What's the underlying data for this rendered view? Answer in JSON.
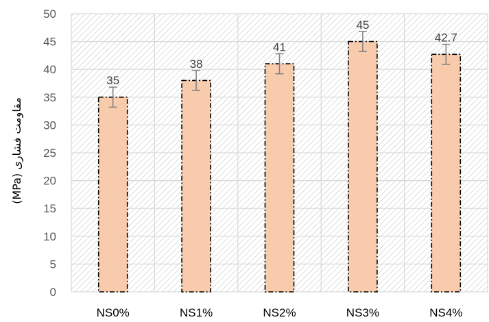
{
  "chart_data": {
    "type": "bar",
    "categories": [
      "NS0%",
      "NS1%",
      "NS2%",
      "NS3%",
      "NS4%"
    ],
    "values": [
      35,
      38,
      41,
      45,
      42.7
    ],
    "data_labels": [
      "35",
      "38",
      "41",
      "45",
      "42.7"
    ],
    "error_bars": [
      1.8,
      1.8,
      1.8,
      1.8,
      1.8
    ],
    "ylabel": "مقاومت فشاری (MPa)",
    "xlabel": "",
    "ylim": [
      0,
      50
    ],
    "yticks": [
      0,
      5,
      10,
      15,
      20,
      25,
      30,
      35,
      40,
      45,
      50
    ],
    "grid": true,
    "legend": "none",
    "colors": {
      "bar_fill": "#f8cbad",
      "bar_border": "#000000",
      "error_bar": "#7f7f7f",
      "grid": "#d9d9d9",
      "background_hatch": "#c8c8c8"
    }
  }
}
